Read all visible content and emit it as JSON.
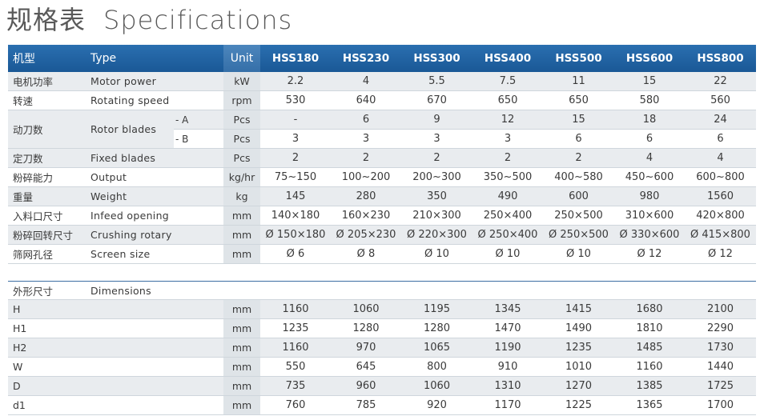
{
  "title": {
    "zh": "规格表",
    "en": "Specifications"
  },
  "header": {
    "model_zh": "机型",
    "type": "Type",
    "unit": "Unit",
    "models": [
      "HSS180",
      "HSS230",
      "HSS300",
      "HSS400",
      "HSS500",
      "HSS600",
      "HSS800"
    ]
  },
  "specs": [
    {
      "zh": "电机功率",
      "en": "Motor power",
      "sub": "",
      "unit": "kW",
      "values": [
        "2.2",
        "4",
        "5.5",
        "7.5",
        "11",
        "15",
        "22"
      ]
    },
    {
      "zh": "转速",
      "en": "Rotating speed",
      "sub": "",
      "unit": "rpm",
      "values": [
        "530",
        "640",
        "670",
        "650",
        "650",
        "580",
        "560"
      ]
    },
    {
      "zh": "动刀数",
      "en": "Rotor blades",
      "sub": "- A",
      "unit": "Pcs",
      "values": [
        "-",
        "6",
        "9",
        "12",
        "15",
        "18",
        "24"
      ]
    },
    {
      "zh": "",
      "en": "",
      "sub": "- B",
      "unit": "Pcs",
      "values": [
        "3",
        "3",
        "3",
        "3",
        "6",
        "6",
        "6"
      ]
    },
    {
      "zh": "定刀数",
      "en": "Fixed blades",
      "sub": "",
      "unit": "Pcs",
      "values": [
        "2",
        "2",
        "2",
        "2",
        "2",
        "4",
        "4"
      ]
    },
    {
      "zh": "粉碎能力",
      "en": "Output",
      "sub": "",
      "unit": "kg/hr",
      "values": [
        "75~150",
        "100~200",
        "200~300",
        "350~500",
        "400~580",
        "450~600",
        "600~800"
      ]
    },
    {
      "zh": "重量",
      "en": "Weight",
      "sub": "",
      "unit": "kg",
      "values": [
        "145",
        "280",
        "350",
        "490",
        "600",
        "980",
        "1560"
      ]
    },
    {
      "zh": "入料口尺寸",
      "en": "Infeed opening",
      "sub": "",
      "unit": "mm",
      "values": [
        "140×180",
        "160×230",
        "210×300",
        "250×400",
        "250×500",
        "310×600",
        "420×800"
      ]
    },
    {
      "zh": "粉碎回转尺寸",
      "en": "Crushing rotary size",
      "sub": "",
      "unit": "mm",
      "values": [
        "Ø 150×180",
        "Ø 205×230",
        "Ø 220×300",
        "Ø 250×400",
        "Ø 250×500",
        "Ø 330×600",
        "Ø 415×800"
      ]
    },
    {
      "zh": "筛网孔径",
      "en": "Screen size",
      "sub": "",
      "unit": "mm",
      "values": [
        "Ø 6",
        "Ø 8",
        "Ø 10",
        "Ø 10",
        "Ø 10",
        "Ø 12",
        "Ø 12"
      ]
    }
  ],
  "dimensions": {
    "zh": "外形尺寸",
    "en": "Dimensions",
    "rows": [
      {
        "label": "H",
        "unit": "mm",
        "values": [
          "1160",
          "1060",
          "1195",
          "1345",
          "1415",
          "1680",
          "2100"
        ]
      },
      {
        "label": "H1",
        "unit": "mm",
        "values": [
          "1235",
          "1280",
          "1280",
          "1470",
          "1490",
          "1810",
          "2290"
        ]
      },
      {
        "label": "H2",
        "unit": "mm",
        "values": [
          "1160",
          "970",
          "1065",
          "1190",
          "1235",
          "1485",
          "1730"
        ]
      },
      {
        "label": "W",
        "unit": "mm",
        "values": [
          "550",
          "645",
          "800",
          "910",
          "1010",
          "1160",
          "1440"
        ]
      },
      {
        "label": "D",
        "unit": "mm",
        "values": [
          "735",
          "960",
          "1060",
          "1310",
          "1270",
          "1385",
          "1725"
        ]
      },
      {
        "label": "d1",
        "unit": "mm",
        "values": [
          "760",
          "785",
          "920",
          "1170",
          "1225",
          "1365",
          "1700"
        ]
      }
    ]
  }
}
